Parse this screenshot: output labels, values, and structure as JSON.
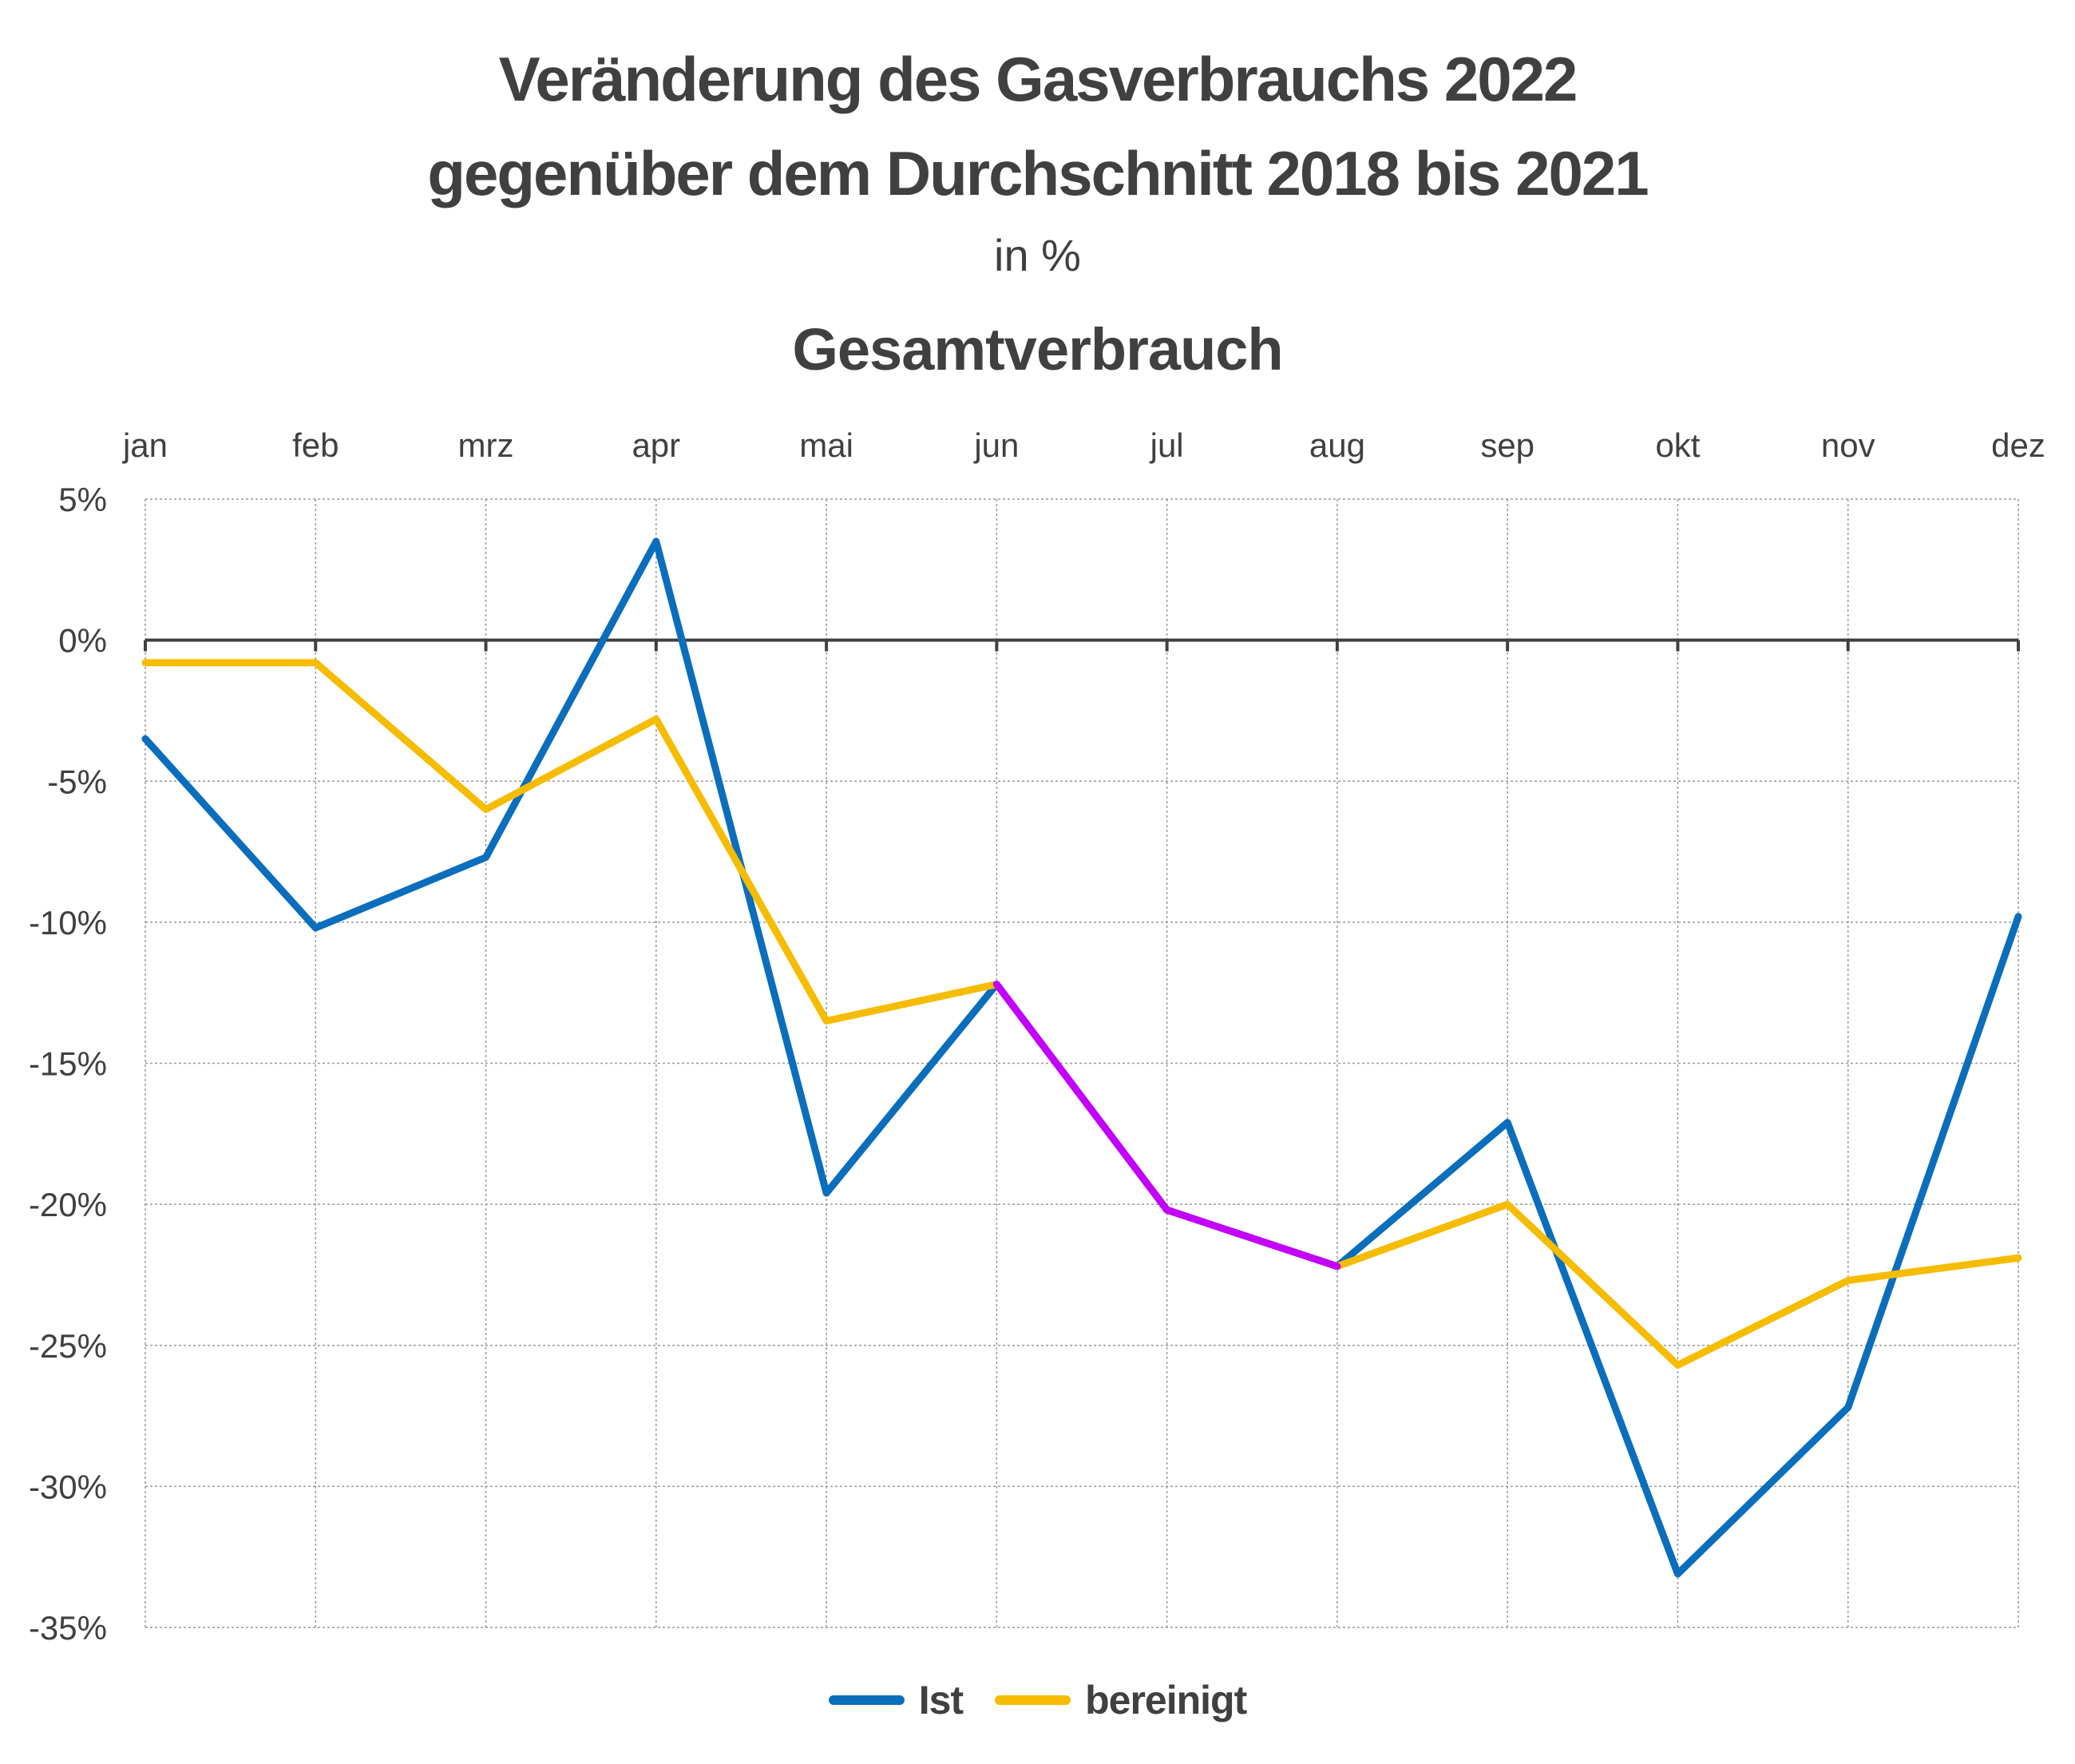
{
  "header": {
    "title_line1": "Veränderung des Gasverbrauchs 2022",
    "title_line2": "gegenüber dem Durchschnitt 2018 bis 2021",
    "unit": "in %"
  },
  "chart_data": {
    "type": "line",
    "title": "Gesamtverbrauch",
    "categories": [
      "jan",
      "feb",
      "mrz",
      "apr",
      "mai",
      "jun",
      "jul",
      "aug",
      "sep",
      "okt",
      "nov",
      "dez"
    ],
    "y_ticks": [
      5,
      0,
      -5,
      -10,
      -15,
      -20,
      -25,
      -30,
      -35
    ],
    "y_tick_labels": [
      "5%",
      "0%",
      "-5%",
      "-10%",
      "-15%",
      "-20%",
      "-25%",
      "-30%",
      "-35%"
    ],
    "ylim": [
      -35,
      5
    ],
    "x_axis_position": "top",
    "grid": true,
    "legend_position": "bottom-center",
    "series": [
      {
        "name": "Ist",
        "color": "#0a6ebd",
        "values": [
          -3.5,
          -10.2,
          -7.7,
          3.5,
          -19.6,
          -12.2,
          -20.2,
          -22.2,
          -17.1,
          -33.1,
          -27.2,
          -9.8
        ]
      },
      {
        "name": "bereinigt",
        "color": "#f5bc00",
        "values": [
          -0.8,
          -0.8,
          -6.0,
          -2.8,
          -13.5,
          -12.2,
          -20.2,
          -22.2,
          -20.0,
          -25.7,
          -22.7,
          -21.9
        ]
      }
    ],
    "overlap_color": "#c300ff"
  }
}
